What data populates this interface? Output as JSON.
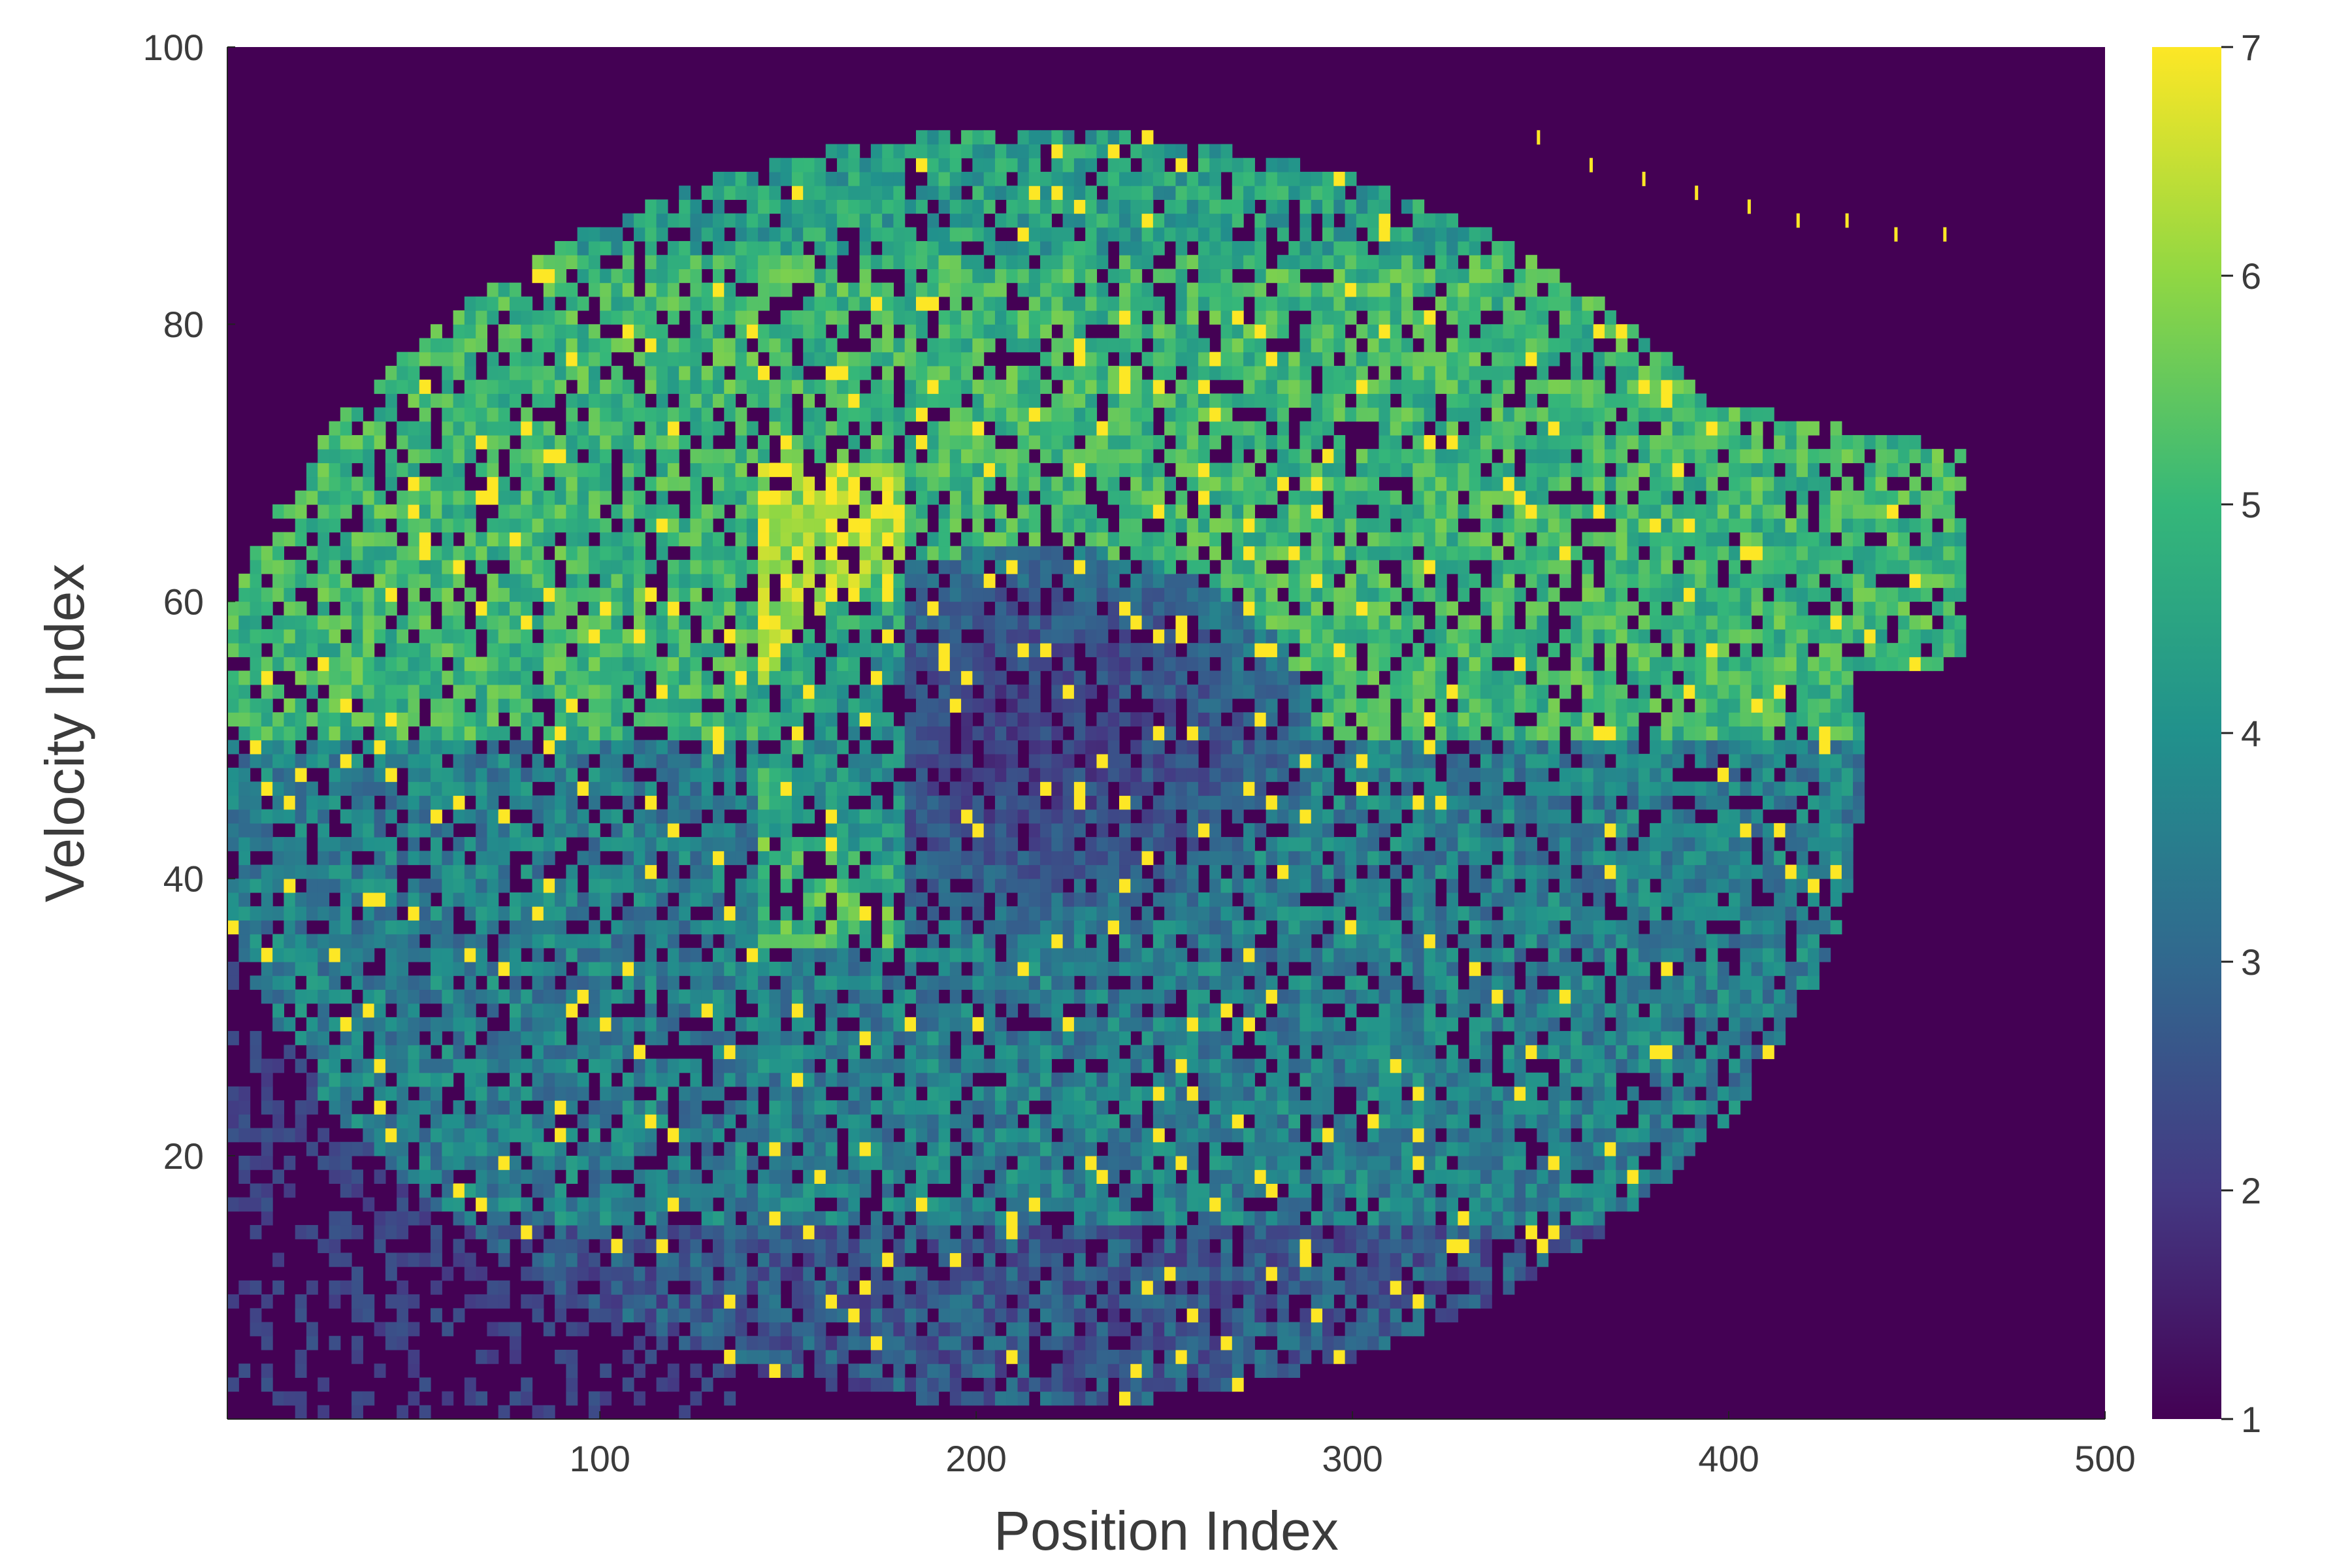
{
  "chart_data": {
    "type": "heatmap",
    "title": "",
    "xlabel": "Position Index",
    "ylabel": "Velocity Index",
    "xlim": [
      1,
      500
    ],
    "ylim": [
      1,
      100
    ],
    "x_ticks": [
      100,
      200,
      300,
      400,
      500
    ],
    "y_ticks": [
      20,
      40,
      60,
      80,
      100
    ],
    "colormap": "viridis",
    "colorbar": {
      "min": 1,
      "max": 7,
      "ticks": [
        1,
        2,
        3,
        4,
        5,
        6,
        7
      ],
      "stops": [
        "#440154",
        "#443983",
        "#31688e",
        "#21918c",
        "#35b779",
        "#90d743",
        "#fde725"
      ]
    },
    "background_value": 1,
    "grid": false,
    "regions": [
      {
        "name": "upper band (high values)",
        "x_range": [
          1,
          460
        ],
        "y_range": [
          50,
          94
        ],
        "typical_value": 5
      },
      {
        "name": "lower band (mid values)",
        "x_range": [
          1,
          430
        ],
        "y_range": [
          3,
          50
        ],
        "typical_value": 3.5
      },
      {
        "name": "central low pocket",
        "center": [
          215,
          50
        ],
        "typical_value": 2
      },
      {
        "name": "bright ridge",
        "x_range": [
          140,
          180
        ],
        "y_range": [
          35,
          70
        ],
        "typical_value": 6.5
      },
      {
        "name": "lower-left sparse tail",
        "x_range": [
          1,
          300
        ],
        "y_range": [
          1,
          40
        ],
        "typical_value": 2
      }
    ],
    "isolated_points": [
      {
        "x": 349,
        "y": 94,
        "value": 7
      },
      {
        "x": 363,
        "y": 92,
        "value": 7
      },
      {
        "x": 377,
        "y": 91,
        "value": 7
      },
      {
        "x": 391,
        "y": 90,
        "value": 7
      },
      {
        "x": 405,
        "y": 89,
        "value": 7
      },
      {
        "x": 418,
        "y": 88,
        "value": 7
      },
      {
        "x": 431,
        "y": 88,
        "value": 7
      },
      {
        "x": 444,
        "y": 87,
        "value": 7
      },
      {
        "x": 457,
        "y": 87,
        "value": 7
      }
    ]
  }
}
